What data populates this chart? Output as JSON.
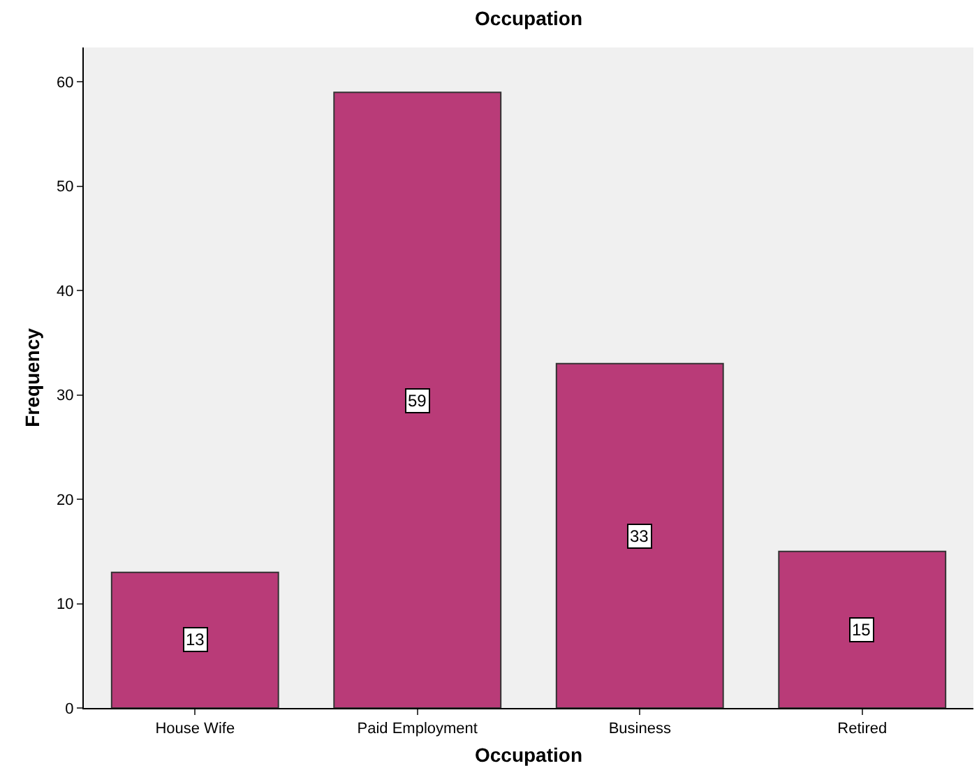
{
  "chart_data": {
    "type": "bar",
    "title": "Occupation",
    "xlabel": "Occupation",
    "ylabel": "Frequency",
    "categories": [
      "House Wife",
      "Paid Employment",
      "Business",
      "Retired"
    ],
    "values": [
      13,
      59,
      33,
      15
    ],
    "color": "#b93b78",
    "ylim": [
      0,
      63.3
    ],
    "yticks": [
      0,
      10,
      20,
      30,
      40,
      50,
      60
    ],
    "grid": false,
    "data_labels": true
  }
}
